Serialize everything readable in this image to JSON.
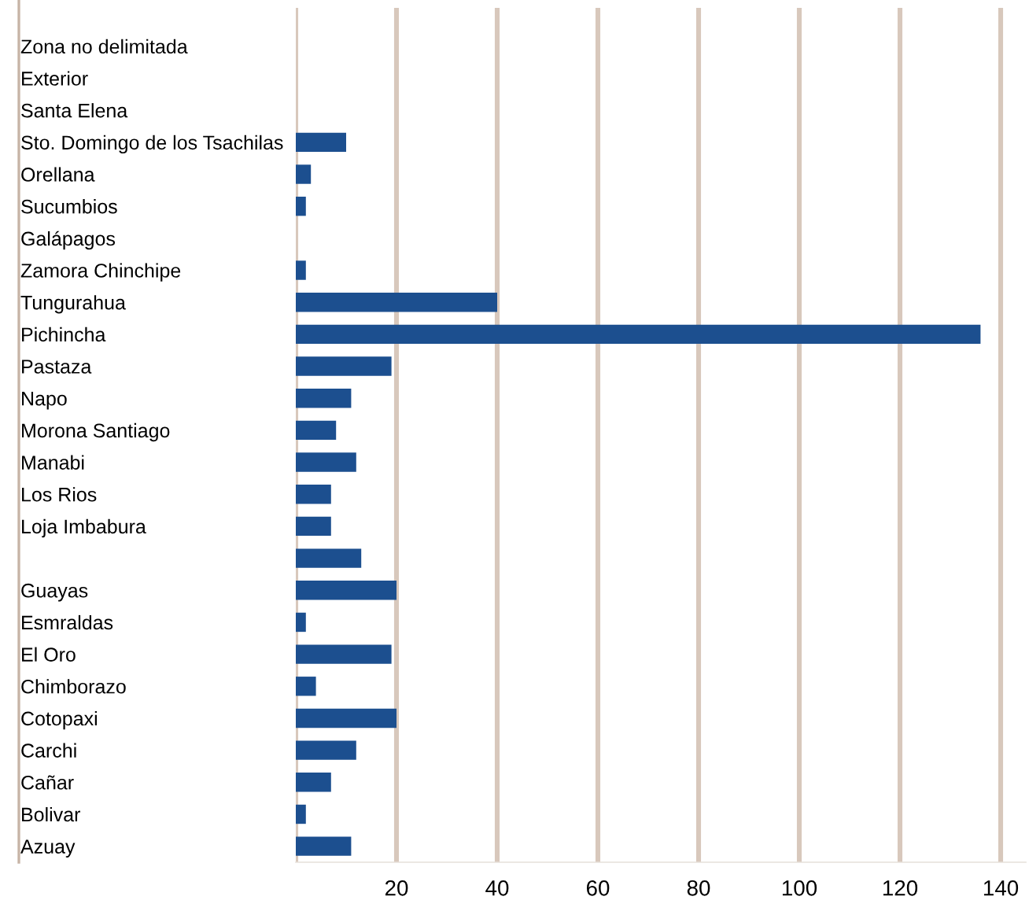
{
  "chart_data": {
    "type": "bar",
    "orientation": "horizontal",
    "categories": [
      "Zona no delimitada",
      "Exterior",
      "Santa Elena",
      "Sto. Domingo de los Tsachilas",
      "Orellana",
      "Sucumbios",
      "Galápagos",
      "Zamora Chinchipe",
      "Tungurahua",
      "Pichincha",
      "Pastaza",
      "Napo",
      "Morona Santiago",
      "Manabi",
      "Los Rios",
      "Loja Imbabura",
      null,
      "Guayas",
      "Esmraldas",
      "El Oro",
      "Chimborazo",
      "Cotopaxi",
      "Carchi",
      "Cañar",
      "Bolivar",
      "Azuay"
    ],
    "values": [
      null,
      null,
      null,
      10,
      3,
      2,
      null,
      2,
      40,
      136,
      19,
      11,
      8,
      12,
      7,
      7,
      13,
      20,
      2,
      19,
      4,
      20,
      12,
      7,
      2,
      11
    ],
    "color": "#1c4f8f",
    "xlim": [
      0,
      145
    ],
    "xticks": [
      {
        "value": 0,
        "label": null
      },
      20,
      40,
      60,
      80,
      100,
      120,
      140
    ],
    "grid": "x"
  }
}
